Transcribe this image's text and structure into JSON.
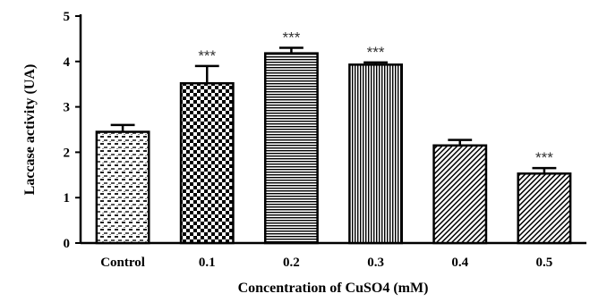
{
  "chart_data": {
    "type": "bar",
    "categories": [
      "Control",
      "0.1",
      "0.2",
      "0.3",
      "0.4",
      "0.5"
    ],
    "values": [
      2.45,
      3.52,
      4.18,
      3.93,
      2.15,
      1.53
    ],
    "errors": [
      0.15,
      0.38,
      0.12,
      0.05,
      0.12,
      0.12
    ],
    "annotations": [
      "",
      "***",
      "***",
      "***",
      "",
      "***"
    ],
    "patterns": [
      "dots",
      "checker",
      "horizontal-lines",
      "vertical-lines",
      "diagonal-lines",
      "diagonal-lines"
    ],
    "xlabel": "Concentration of CuSO4 (mM)",
    "ylabel": "Laccase activity (UA)",
    "ylim": [
      0,
      5
    ],
    "yticks": [
      "0",
      "1",
      "2",
      "3",
      "4",
      "5"
    ],
    "grid": false
  }
}
